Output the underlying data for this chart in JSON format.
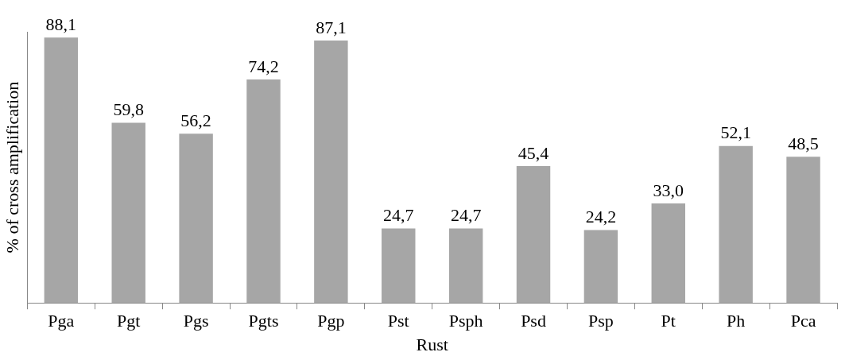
{
  "chart_data": {
    "type": "bar",
    "xlabel": "Rust",
    "ylabel": "% of cross amplification",
    "categories": [
      "Pga",
      "Pgt",
      "Pgs",
      "Pgts",
      "Pgp",
      "Pst",
      "Psph",
      "Psd",
      "Psp",
      "Pt",
      "Ph",
      "Pca"
    ],
    "values": [
      88.1,
      59.8,
      56.2,
      74.2,
      87.1,
      24.7,
      24.7,
      45.4,
      24.2,
      33.0,
      52.1,
      48.5
    ],
    "value_labels": [
      "88,1",
      "59,8",
      "56,2",
      "74,2",
      "87,1",
      "24,7",
      "24,7",
      "45,4",
      "24,2",
      "33,0",
      "52,1",
      "48,5"
    ],
    "color": "#a6a6a6",
    "grid": false,
    "legend": false,
    "tick_labels": "x"
  }
}
